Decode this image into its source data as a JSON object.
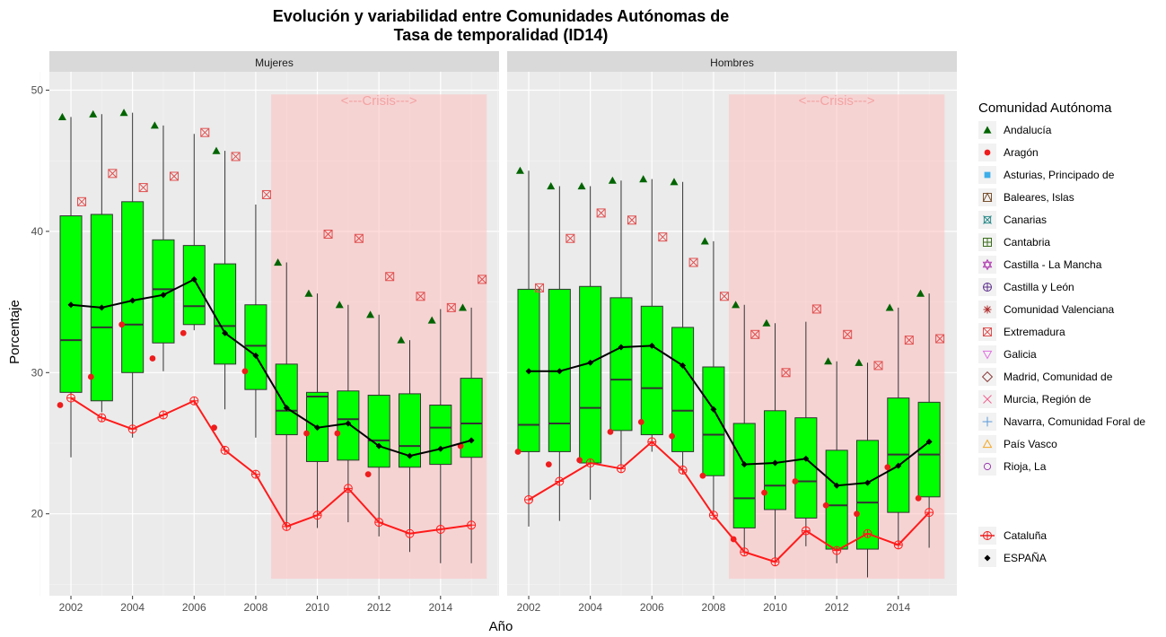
{
  "chart_data": {
    "type": "box",
    "title": "Evolución y variabilidad entre Comunidades Autónomas de",
    "subtitle": "Tasa de temporalidad (ID14)",
    "xlabel": "Año",
    "ylabel": "Porcentaje",
    "xlim": [
      2001.3,
      2015.9
    ],
    "ylim": [
      14.2,
      51.3
    ],
    "x_ticks": [
      2002,
      2004,
      2006,
      2008,
      2010,
      2012,
      2014
    ],
    "y_ticks": [
      20,
      30,
      40,
      50
    ],
    "grid": true,
    "legend_position": "right",
    "crisis": {
      "label": "<---Crisis--->",
      "x_start": 2008.5,
      "x_end": 2015.5,
      "y_bottom": 15.4,
      "y_top": 49.7
    },
    "panels": [
      {
        "name": "Mujeres",
        "years": [
          2002,
          2003,
          2004,
          2005,
          2006,
          2007,
          2008,
          2009,
          2010,
          2011,
          2012,
          2013,
          2014,
          2015
        ],
        "box_whiskers": [
          [
            24.0,
            48.1
          ],
          [
            27.2,
            48.3
          ],
          [
            25.4,
            48.4
          ],
          [
            30.1,
            47.5
          ],
          [
            33.0,
            46.9
          ],
          [
            27.4,
            45.7
          ],
          [
            25.4,
            41.9
          ],
          [
            19.0,
            37.8
          ],
          [
            19.0,
            35.6
          ],
          [
            19.4,
            34.8
          ],
          [
            18.4,
            34.1
          ],
          [
            17.3,
            32.3
          ],
          [
            16.5,
            34.5
          ],
          [
            16.5,
            34.6
          ]
        ],
        "box_q1": [
          28.6,
          28.0,
          30.0,
          32.1,
          33.4,
          30.6,
          28.8,
          25.6,
          23.7,
          23.8,
          23.3,
          23.3,
          23.5,
          24.0
        ],
        "box_median": [
          32.3,
          33.2,
          33.4,
          35.9,
          34.7,
          33.3,
          31.9,
          27.3,
          28.3,
          26.7,
          25.2,
          24.8,
          26.1,
          26.4
        ],
        "box_q3": [
          41.1,
          41.2,
          42.1,
          39.4,
          39.0,
          37.7,
          34.8,
          30.6,
          28.6,
          28.7,
          28.4,
          28.5,
          27.7,
          29.6
        ],
        "espana": [
          34.8,
          34.6,
          35.1,
          35.5,
          36.6,
          32.8,
          31.2,
          27.5,
          26.1,
          26.4,
          24.8,
          24.1,
          24.6,
          25.2
        ],
        "cataluna": [
          28.2,
          26.8,
          26.0,
          27.0,
          28.0,
          24.5,
          22.8,
          19.1,
          19.9,
          21.8,
          19.4,
          18.6,
          18.9,
          19.2
        ],
        "andalucia": [
          48.1,
          48.3,
          48.4,
          47.5,
          null,
          45.7,
          null,
          37.8,
          35.6,
          34.8,
          34.1,
          32.3,
          33.7,
          34.6
        ],
        "extremadura": [
          42.1,
          44.1,
          43.1,
          43.9,
          47.0,
          45.3,
          42.6,
          null,
          39.8,
          39.5,
          36.8,
          35.4,
          34.6,
          36.6
        ],
        "aragon": [
          27.7,
          29.7,
          33.4,
          31.0,
          32.8,
          26.1,
          30.1,
          null,
          25.7,
          25.7,
          22.8,
          null,
          null,
          24.8
        ]
      },
      {
        "name": "Hombres",
        "years": [
          2002,
          2003,
          2004,
          2005,
          2006,
          2007,
          2008,
          2009,
          2010,
          2011,
          2012,
          2013,
          2014,
          2015
        ],
        "box_whiskers": [
          [
            19.1,
            44.3
          ],
          [
            19.5,
            43.2
          ],
          [
            21.0,
            43.2
          ],
          [
            23.3,
            43.6
          ],
          [
            24.4,
            43.7
          ],
          [
            22.8,
            43.5
          ],
          [
            19.8,
            39.3
          ],
          [
            17.2,
            34.8
          ],
          [
            16.6,
            33.5
          ],
          [
            17.7,
            33.6
          ],
          [
            16.5,
            30.8
          ],
          [
            15.5,
            30.7
          ],
          [
            17.7,
            34.6
          ],
          [
            17.6,
            35.6
          ]
        ],
        "box_q1": [
          24.4,
          24.4,
          23.6,
          25.9,
          25.6,
          24.4,
          22.7,
          19.0,
          20.3,
          19.7,
          17.5,
          17.5,
          20.1,
          21.2
        ],
        "box_median": [
          26.3,
          26.4,
          27.5,
          29.5,
          28.9,
          27.3,
          25.6,
          21.1,
          22.0,
          22.3,
          20.6,
          20.8,
          24.2,
          24.2
        ],
        "box_q3": [
          35.9,
          35.9,
          36.1,
          35.3,
          34.7,
          33.2,
          30.4,
          26.4,
          27.3,
          26.8,
          24.5,
          25.2,
          28.2,
          27.9
        ],
        "espana": [
          30.1,
          30.1,
          30.7,
          31.8,
          31.9,
          30.5,
          27.4,
          23.5,
          23.6,
          23.9,
          22.0,
          22.2,
          23.4,
          25.1
        ],
        "cataluna": [
          21.0,
          22.3,
          23.6,
          23.2,
          25.1,
          23.1,
          19.9,
          17.3,
          16.6,
          18.8,
          17.4,
          18.6,
          17.8,
          20.1
        ],
        "andalucia": [
          44.3,
          43.2,
          43.2,
          43.6,
          43.7,
          43.5,
          39.3,
          34.8,
          33.5,
          null,
          30.8,
          30.7,
          34.6,
          35.6
        ],
        "extremadura": [
          36.0,
          39.5,
          41.3,
          40.8,
          39.6,
          37.8,
          35.4,
          32.7,
          30.0,
          34.5,
          32.7,
          30.5,
          32.3,
          32.4
        ],
        "aragon": [
          24.4,
          23.5,
          23.8,
          25.8,
          26.5,
          25.5,
          22.7,
          18.2,
          21.5,
          22.3,
          20.6,
          20.0,
          23.3,
          21.1
        ]
      }
    ],
    "legend": {
      "title": "Comunidad Autónoma",
      "items": [
        {
          "label": "Andalucía",
          "shape": "triangle-filled",
          "color": "#006400"
        },
        {
          "label": "Aragón",
          "shape": "circle-filled",
          "color": "#ee1c1c"
        },
        {
          "label": "Asturias, Principado de",
          "shape": "square-filled",
          "color": "#3daee9"
        },
        {
          "label": "Baleares, Islas",
          "shape": "square-triangle",
          "color": "#7a5230"
        },
        {
          "label": "Canarias",
          "shape": "square-x",
          "color": "#2e8b8b"
        },
        {
          "label": "Cantabria",
          "shape": "square-plus",
          "color": "#3a6e1a"
        },
        {
          "label": "Castilla - La Mancha",
          "shape": "star-of-david",
          "color": "#b03ab0"
        },
        {
          "label": "Castilla y León",
          "shape": "circle-plus",
          "color": "#5a2a8a"
        },
        {
          "label": "Comunidad Valenciana",
          "shape": "asterisk",
          "color": "#b02a2a"
        },
        {
          "label": "Extremadura",
          "shape": "square-x-boxed",
          "color": "#e05050"
        },
        {
          "label": "Galicia",
          "shape": "triangle-down",
          "color": "#e070e0"
        },
        {
          "label": "Madrid, Comunidad de",
          "shape": "diamond",
          "color": "#8b3a3a"
        },
        {
          "label": "Murcia, Región de",
          "shape": "x",
          "color": "#f06090"
        },
        {
          "label": "Navarra, Comunidad Foral de",
          "shape": "plus",
          "color": "#5a9ad8"
        },
        {
          "label": "País Vasco",
          "shape": "triangle-open",
          "color": "#f5a623"
        },
        {
          "label": "Rioja, La",
          "shape": "circle-open",
          "color": "#9a3ab0"
        }
      ],
      "series_items": [
        {
          "label": "Cataluña",
          "shape": "circle-plus",
          "color": "#ee1c1c"
        },
        {
          "label": "ESPAÑA",
          "shape": "diamond-filled",
          "color": "#000000"
        }
      ]
    },
    "colors": {
      "box_fill": "#00ff00",
      "panel_bg": "#ebebeb",
      "strip_bg": "#d9d9d9",
      "crisis_fill": "#ffc0c0",
      "espana": "#000000",
      "cataluna": "#ff1a1a"
    }
  }
}
